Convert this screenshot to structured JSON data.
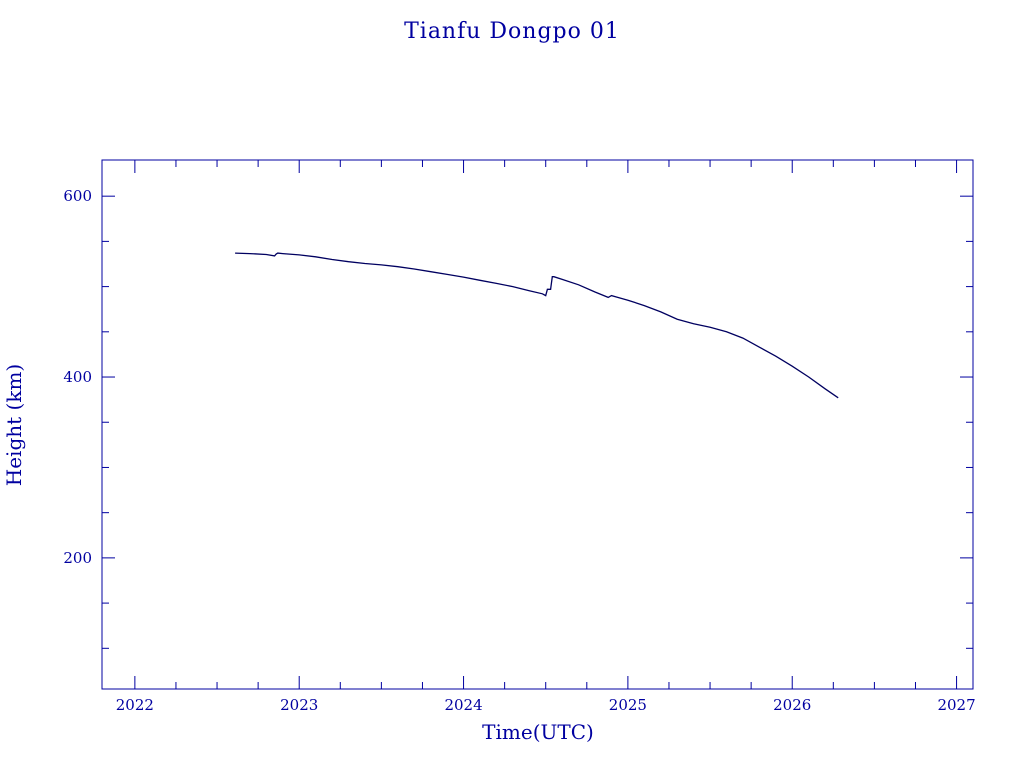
{
  "chart_data": {
    "type": "line",
    "title": "Tianfu Dongpo 01",
    "xlabel": "Time(UTC)",
    "ylabel": "Height (km)",
    "xlim": [
      2021.8,
      2027.1
    ],
    "ylim": [
      55,
      640
    ],
    "x_ticks": [
      2022,
      2023,
      2024,
      2025,
      2026,
      2027
    ],
    "x_tick_labels": [
      "2022",
      "2023",
      "2024",
      "2025",
      "2026",
      "2027"
    ],
    "x_minor_step": 0.25,
    "y_ticks": [
      200,
      400,
      600
    ],
    "y_tick_labels": [
      "200",
      "400",
      "600"
    ],
    "y_minor_step": 50,
    "grid": false,
    "colors": {
      "axes": "#0000a0",
      "line": "#000060"
    },
    "series": [
      {
        "x": [
          2022.61,
          2022.7,
          2022.8,
          2022.85,
          2022.86,
          2022.87,
          2022.9,
          2023.0,
          2023.1,
          2023.2,
          2023.3,
          2023.4,
          2023.5,
          2023.6,
          2023.7,
          2023.8,
          2023.9,
          2024.0,
          2024.1,
          2024.2,
          2024.3,
          2024.4,
          2024.48,
          2024.5,
          2024.51,
          2024.53,
          2024.54,
          2024.55,
          2024.6,
          2024.7,
          2024.8,
          2024.88,
          2024.9,
          2024.93,
          2025.0,
          2025.1,
          2025.2,
          2025.3,
          2025.4,
          2025.5,
          2025.6,
          2025.7,
          2025.8,
          2025.9,
          2026.0,
          2026.1,
          2026.2,
          2026.28
        ],
        "y": [
          537,
          536.5,
          535.5,
          534,
          536,
          537,
          536.5,
          535,
          533,
          530,
          527.5,
          525.5,
          524,
          522,
          519.5,
          516.5,
          513.5,
          510.5,
          507,
          503.5,
          500,
          495.5,
          492,
          490,
          497,
          497,
          511,
          511,
          508,
          502,
          494,
          488,
          490,
          488.5,
          485,
          479,
          472,
          464,
          459,
          455,
          450,
          443,
          433,
          423,
          412,
          400,
          387,
          377
        ]
      }
    ]
  }
}
